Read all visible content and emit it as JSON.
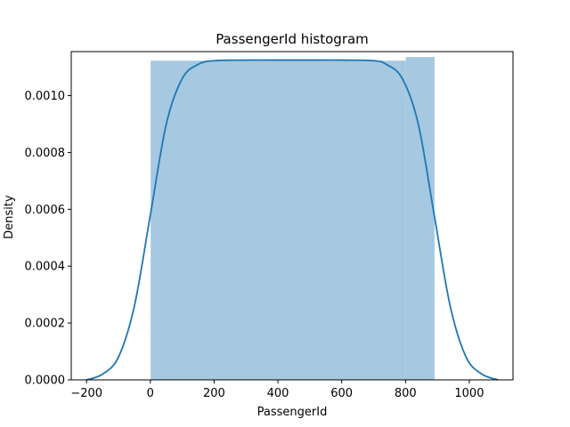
{
  "chart_data": {
    "type": "bar",
    "title": "PassengerId histogram",
    "xlabel": "PassengerId",
    "ylabel": "Density",
    "xlim": [
      -248,
      1137
    ],
    "ylim": [
      0,
      0.001155
    ],
    "x_ticks": [
      -200,
      0,
      200,
      400,
      600,
      800,
      1000
    ],
    "y_ticks": [
      0,
      0.0002,
      0.0004,
      0.0006,
      0.0008,
      0.001
    ],
    "y_tick_labels": [
      "0.0000",
      "0.0002",
      "0.0004",
      "0.0006",
      "0.0008",
      "0.0010"
    ],
    "grid": false,
    "histogram": {
      "bins": [
        {
          "x0": 1,
          "x1": 801,
          "density": 0.001123
        },
        {
          "x0": 801,
          "x1": 891,
          "density": 0.001136
        }
      ],
      "color": "#a6c8e1"
    },
    "kde": {
      "color": "#1f77b4",
      "points": [
        [
          -200,
          0.0
        ],
        [
          -150,
          2e-05
        ],
        [
          -100,
          8e-05
        ],
        [
          -50,
          0.00026
        ],
        [
          0,
          0.00058
        ],
        [
          50,
          0.0009
        ],
        [
          100,
          0.00106
        ],
        [
          150,
          0.00111
        ],
        [
          200,
          0.001123
        ],
        [
          300,
          0.001125
        ],
        [
          400,
          0.001125
        ],
        [
          500,
          0.001125
        ],
        [
          600,
          0.001125
        ],
        [
          700,
          0.001123
        ],
        [
          740,
          0.00111
        ],
        [
          790,
          0.00106
        ],
        [
          840,
          0.0009
        ],
        [
          890,
          0.00058
        ],
        [
          940,
          0.00026
        ],
        [
          990,
          8e-05
        ],
        [
          1040,
          2e-05
        ],
        [
          1090,
          0.0
        ]
      ]
    }
  }
}
